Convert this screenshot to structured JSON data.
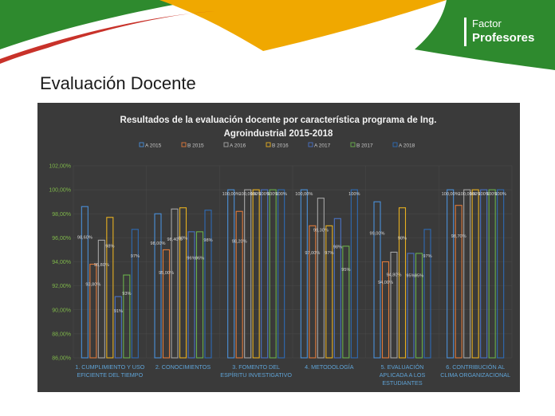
{
  "brand": {
    "line1": "Factor",
    "line2": "Profesores"
  },
  "slide_title": "Evaluación Docente",
  "colors": {
    "green": "#2e8a2e",
    "red": "#c8322a",
    "gold": "#f0a800",
    "panel": "#3a3a3a"
  },
  "chart_data": {
    "type": "bar",
    "title_lines": [
      "Resultados de la evaluación docente por característica programa de Ing.",
      "Agroindustrial 2015-2018"
    ],
    "ylim": [
      86,
      102
    ],
    "yticks": [
      "86,00%",
      "88,00%",
      "90,00%",
      "92,00%",
      "94,00%",
      "96,00%",
      "98,00%",
      "100,00%",
      "102,00%"
    ],
    "categories": [
      [
        "1. CUMPLIMIENTO Y USO",
        "EFICIENTE DEL TIEMPO"
      ],
      [
        "2. CONOCIMIENTOS"
      ],
      [
        "3. FOMENTO DEL",
        "ESPÍRITU INVESTIGATIVO"
      ],
      [
        "4. METODOLOGÍA"
      ],
      [
        "5. EVALUACIÓN",
        "APLICADA A LOS",
        "ESTUDIANTES"
      ],
      [
        "6. CONTRIBUCIÓN AL",
        "CLIMA ORGANIZACIONAL"
      ]
    ],
    "series": [
      {
        "name": "A 2015",
        "color": "#4a90d9",
        "values": [
          98.6,
          98.0,
          100.0,
          100.0,
          99.0,
          100.0
        ],
        "labels": [
          "98,60%",
          "98,00%",
          "100,00%",
          "100,00%",
          "99,00%",
          "100,00%"
        ]
      },
      {
        "name": "B 2015",
        "color": "#e07a3a",
        "values": [
          93.8,
          95.0,
          98.2,
          97.0,
          94.0,
          98.7
        ],
        "labels": [
          "93,80%",
          "95,00%",
          "98,20%",
          "97,00%",
          "94,00%",
          "98,70%"
        ]
      },
      {
        "name": "A 2016",
        "color": "#a6a6a6",
        "values": [
          95.8,
          98.4,
          100.0,
          99.3,
          94.8,
          100.0
        ],
        "labels": [
          "95,80%",
          "98,40%",
          "100,00%",
          "99,30%",
          "94,80%",
          "100,00%"
        ]
      },
      {
        "name": "B 2016",
        "color": "#e8b020",
        "values": [
          97.7,
          98.5,
          100.0,
          97.0,
          98.5,
          100.0
        ],
        "labels": [
          "98%",
          "98%",
          "100%",
          "97%",
          "98%",
          "100%"
        ]
      },
      {
        "name": "A 2017",
        "color": "#4a72c4",
        "values": [
          91.1,
          96.5,
          100.0,
          97.6,
          94.7,
          100.0
        ],
        "labels": [
          "91%",
          "96%",
          "100%",
          "98%",
          "95%",
          "100%"
        ]
      },
      {
        "name": "B 2017",
        "color": "#6ab04c",
        "values": [
          92.9,
          96.5,
          100.0,
          95.3,
          94.7,
          100.0
        ],
        "labels": [
          "93%",
          "96%",
          "100%",
          "95%",
          "95%",
          "100%"
        ]
      },
      {
        "name": "A 2018",
        "color": "#2e6bb5",
        "values": [
          96.7,
          98.3,
          100.0,
          100.0,
          96.7,
          100.0
        ],
        "labels": [
          "97%",
          "98%",
          "100%",
          "100%",
          "97%",
          "100%"
        ]
      }
    ]
  }
}
